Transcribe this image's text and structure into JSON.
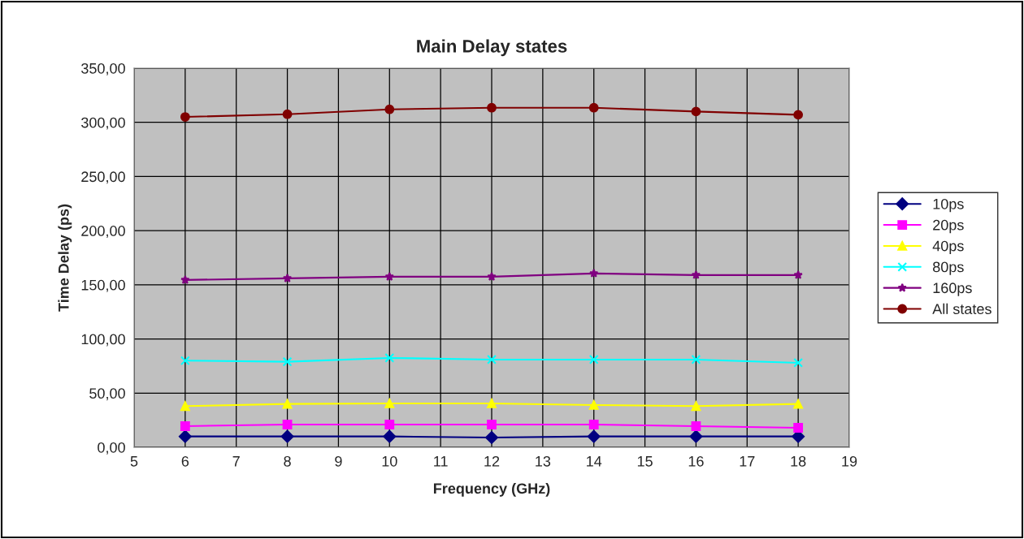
{
  "chart_data": {
    "type": "line",
    "title": "Main Delay states",
    "xlabel": "Frequency (GHz)",
    "ylabel": "Time Delay (ps)",
    "x": [
      6,
      8,
      10,
      12,
      14,
      16,
      18
    ],
    "series": [
      {
        "name": "10ps",
        "color": "#000080",
        "marker": "diamond",
        "values": [
          10,
          10,
          10,
          9,
          10,
          10,
          10
        ]
      },
      {
        "name": "20ps",
        "color": "#ff00ff",
        "marker": "square",
        "values": [
          19.5,
          21,
          21,
          21,
          21,
          19.5,
          18
        ]
      },
      {
        "name": "40ps",
        "color": "#ffff00",
        "marker": "triangle",
        "values": [
          38,
          40,
          40.5,
          40.5,
          39,
          38,
          40
        ]
      },
      {
        "name": "80ps",
        "color": "#00ffff",
        "marker": "cross",
        "values": [
          80,
          79,
          82.5,
          81,
          81,
          81,
          78
        ]
      },
      {
        "name": "160ps",
        "color": "#800080",
        "marker": "star",
        "values": [
          154.5,
          156,
          157.5,
          157.5,
          160.5,
          159,
          159
        ]
      },
      {
        "name": "All states",
        "color": "#800000",
        "marker": "circle",
        "values": [
          305,
          307.5,
          312,
          313.5,
          313.5,
          310,
          307
        ]
      }
    ],
    "xlim": [
      5,
      19
    ],
    "xticks": [
      5,
      6,
      7,
      8,
      9,
      10,
      11,
      12,
      13,
      14,
      15,
      16,
      17,
      18,
      19
    ],
    "ylim": [
      0,
      350
    ],
    "yticks": [
      {
        "value": 0,
        "label": "0,00"
      },
      {
        "value": 50,
        "label": "50,00"
      },
      {
        "value": 100,
        "label": "100,00"
      },
      {
        "value": 150,
        "label": "150,00"
      },
      {
        "value": 200,
        "label": "200,00"
      },
      {
        "value": 250,
        "label": "250,00"
      },
      {
        "value": 300,
        "label": "300,00"
      },
      {
        "value": 350,
        "label": "350,00"
      }
    ],
    "grid": true,
    "legend": "right",
    "line_style": "solid"
  }
}
